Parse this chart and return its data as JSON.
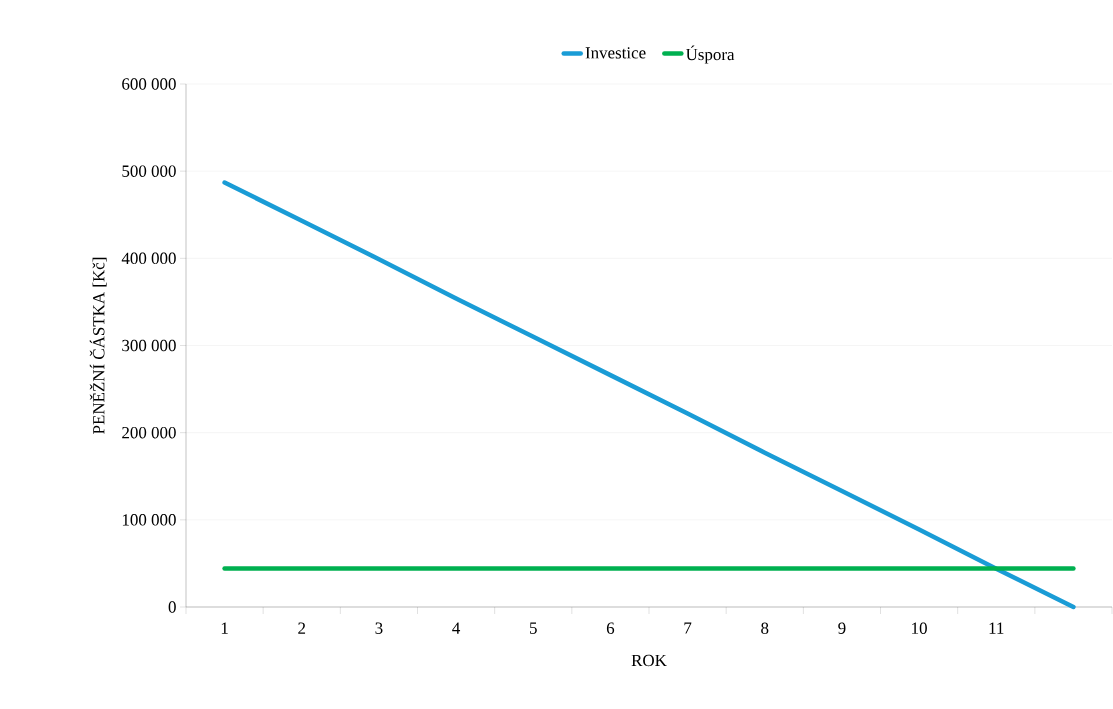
{
  "chart_data": {
    "type": "line",
    "xlabel": "ROK",
    "ylabel": "PENĚŽNÍ ČÁSTKA [Kč]",
    "categories": [
      "1",
      "2",
      "3",
      "4",
      "5",
      "6",
      "7",
      "8",
      "9",
      "10",
      "11",
      null
    ],
    "series": [
      {
        "name": "Investice",
        "color": "#1a9cd6",
        "values": [
          487000,
          443000,
          399000,
          354000,
          310000,
          266000,
          222000,
          177000,
          133000,
          89000,
          44000,
          0
        ]
      },
      {
        "name": "Úspora",
        "color": "#00b050",
        "values": [
          44300,
          44300,
          44300,
          44300,
          44300,
          44300,
          44300,
          44300,
          44300,
          44300,
          44300,
          44300
        ]
      }
    ],
    "ylim": [
      0,
      600000
    ],
    "yticks": [
      {
        "value": 0,
        "label": "0"
      },
      {
        "value": 100000,
        "label": "100 000"
      },
      {
        "value": 200000,
        "label": "200 000"
      },
      {
        "value": 300000,
        "label": "300 000"
      },
      {
        "value": 400000,
        "label": "400 000"
      },
      {
        "value": 500000,
        "label": "500 000"
      },
      {
        "value": 600000,
        "label": "600 000"
      }
    ],
    "grid": "y",
    "legend": "top",
    "marker": "none",
    "line_style": "solid"
  }
}
